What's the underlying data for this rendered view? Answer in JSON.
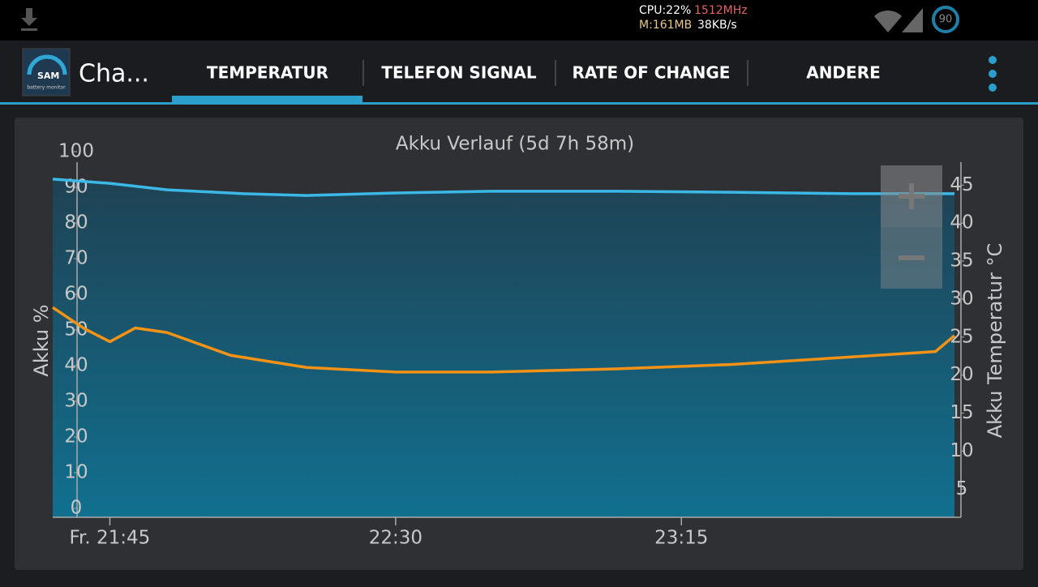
{
  "status_bar": {
    "cpu": "CPU:22%",
    "cpu_freq": "1512MHz",
    "memory": "M:161MB",
    "network": "38KB/s",
    "battery": "90"
  },
  "app_bar": {
    "logo": "SAM",
    "logo_caption": "battery monitor",
    "title": "Cha...",
    "tabs": [
      "TEMPERATUR",
      "TELEFON SIGNAL",
      "RATE OF CHANGE",
      "ANDERE"
    ]
  },
  "chart_data": {
    "type": "line",
    "title": "Akku Verlauf (5d 7h 58m)",
    "y_label": "Akku %",
    "y2_label": "Akku Temperatur °C",
    "xlim": [
      "21:36",
      "23:58"
    ],
    "xticks": [
      {
        "value": "21:45",
        "label": "Fr. 21:45"
      },
      "22:30",
      "23:15"
    ],
    "ylim": [
      -2.5,
      100
    ],
    "yticks": [
      0,
      10,
      20,
      30,
      40,
      50,
      60,
      70,
      80,
      90,
      100
    ],
    "y2lim": [
      1.3,
      49.4
    ],
    "y2ticks": [
      5,
      10,
      15,
      20,
      25,
      30,
      35,
      40,
      45
    ],
    "series": [
      {
        "color": "#3bb8e6",
        "area": true,
        "x": [
          "21:36",
          "21:45",
          "21:54",
          "22:06",
          "22:16",
          "22:30",
          "22:45",
          "23:04",
          "23:23",
          "23:42",
          "23:58"
        ],
        "values": [
          92.3,
          91.1,
          89.3,
          88.2,
          87.7,
          88.4,
          88.9,
          88.9,
          88.6,
          88.2,
          88.2
        ]
      },
      {
        "color": "#f39214",
        "axis": "y2",
        "x": [
          "21:36",
          "21:41",
          "21:45",
          "21:49",
          "21:54",
          "22:04",
          "22:16",
          "22:30",
          "22:45",
          "23:04",
          "23:23",
          "23:42",
          "23:55",
          "23:58"
        ],
        "values": [
          28.9,
          26.1,
          24.4,
          26.2,
          25.6,
          22.6,
          21.0,
          20.4,
          20.4,
          20.8,
          21.4,
          22.4,
          23.1,
          25.2
        ]
      }
    ]
  }
}
